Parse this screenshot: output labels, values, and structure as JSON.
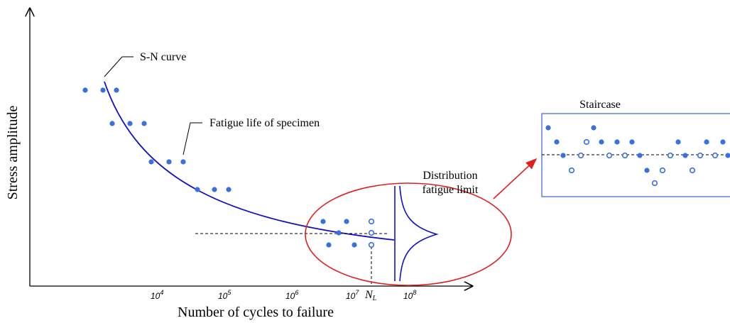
{
  "axes": {
    "y_label": "Stress amplitude",
    "x_label": "Number of cycles to failure",
    "x_ticks": [
      {
        "base": "10",
        "exponent": "4"
      },
      {
        "base": "10",
        "exponent": "5"
      },
      {
        "base": "10",
        "exponent": "6"
      },
      {
        "base": "10",
        "exponent": "7"
      },
      {
        "base": "10",
        "exponent": "8"
      }
    ],
    "limit_tick": {
      "base": "N",
      "subscript": "L"
    }
  },
  "annotations": {
    "curve": "S-N curve",
    "specimen": "Fatigue life of specimen",
    "distribution": [
      "Distribution",
      "fatigue limit"
    ],
    "staircase": "Staircase"
  }
}
